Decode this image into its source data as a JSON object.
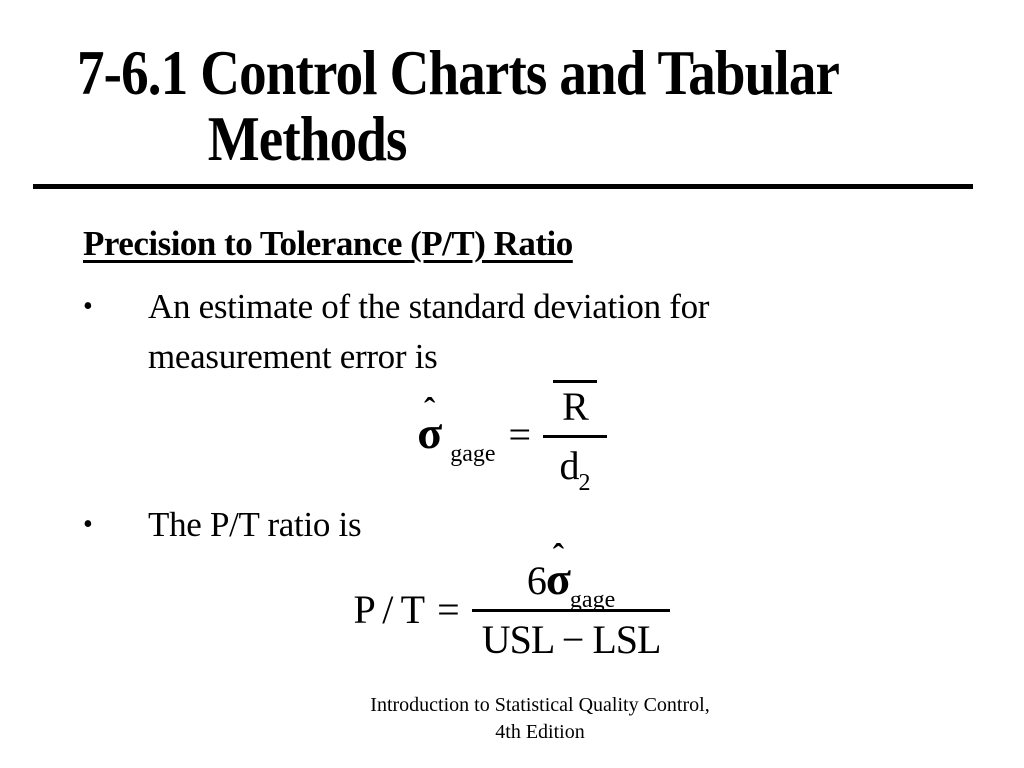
{
  "slide": {
    "title_line1": "7-6.1 Control Charts and Tabular",
    "title_line2": "Methods",
    "heading": "Precision to Tolerance (P/T) Ratio",
    "bullet_char": "•",
    "bullets": [
      {
        "text": "An estimate of the standard deviation for measurement error is"
      },
      {
        "text": "The P/T ratio is"
      }
    ],
    "formula_sigma_gage": {
      "sigma": "σ",
      "hat": "ˆ",
      "subscript": "gage",
      "equals": "=",
      "numerator": "R",
      "denominator_base": "d",
      "denominator_subscript": "2"
    },
    "formula_pt": {
      "lhs": "P / T",
      "equals": "=",
      "numerator_coefficient": "6",
      "sigma": "σ",
      "hat": "ˆ",
      "subscript": "gage",
      "denominator": "USL − LSL"
    },
    "footer_line1": "Introduction to Statistical Quality Control,",
    "footer_line2": "4th Edition",
    "colors": {
      "text": "#000000",
      "background": "#ffffff"
    }
  }
}
